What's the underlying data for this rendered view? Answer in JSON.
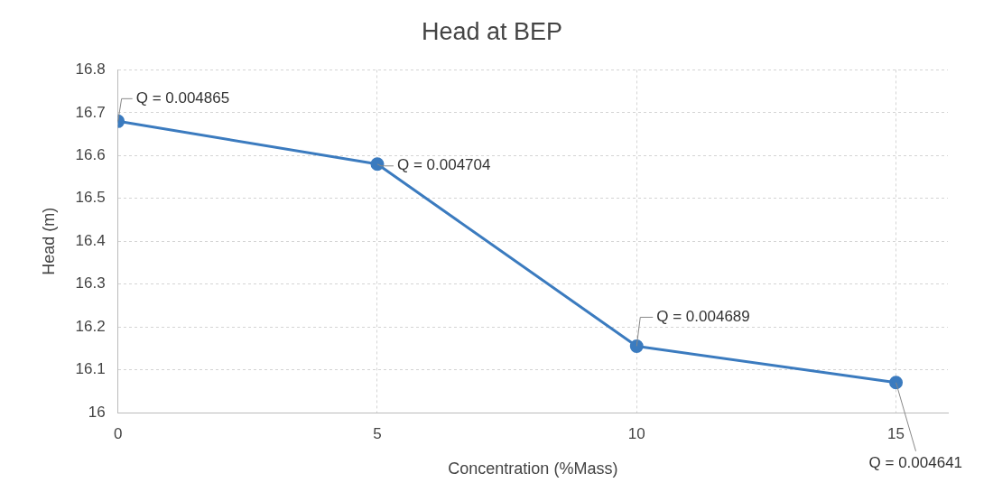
{
  "chart_data": {
    "type": "line",
    "title": "Head at BEP",
    "xlabel": "Concentration (%Mass)",
    "ylabel": "Head (m)",
    "x": [
      0,
      5,
      10,
      15
    ],
    "series": [
      {
        "color": "#3b7bbf",
        "values": [
          16.68,
          16.58,
          16.155,
          16.07
        ]
      }
    ],
    "xlim": [
      0,
      16
    ],
    "xticks": [
      0,
      5,
      10,
      15
    ],
    "ylim": [
      16,
      16.8
    ],
    "yticks": [
      {
        "value": 16,
        "label": "16"
      },
      16.1,
      16.2,
      16.3,
      16.4,
      16.5,
      16.6,
      16.7,
      16.8
    ],
    "grid": true,
    "legend": false,
    "marker": "circle",
    "line_style": "solid",
    "annotations": [
      {
        "text": "Q = 0.004865",
        "x": 0,
        "y": 16.68
      },
      {
        "text": "Q = 0.004704",
        "x": 5,
        "y": 16.58
      },
      {
        "text": "Q = 0.004689",
        "x": 10,
        "y": 16.155
      },
      {
        "text": "Q = 0.004641",
        "x": 15,
        "y": 16.07
      }
    ]
  }
}
